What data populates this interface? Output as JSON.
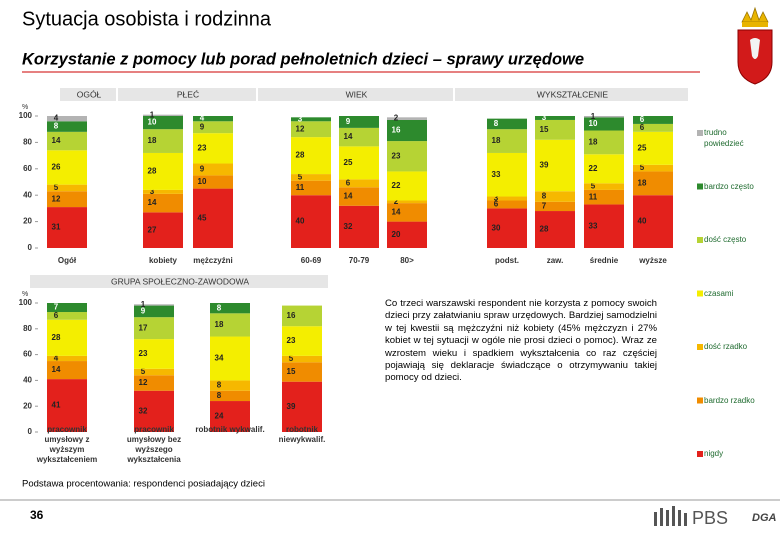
{
  "header": {
    "title": "Sytuacja osobista i rodzinna",
    "subtitle": "Korzystanie z pomocy lub porad pełnoletnich dzieci – sprawy urzędowe"
  },
  "note": "Co trzeci warszawski respondent nie korzysta z pomocy swoich dzieci przy załatwianiu spraw urzędowych. Bardziej samodzielni w tej kwestii są mężczyźni niż kobiety (45% mężczyzn i 27% kobiet w tej sytuacji w ogóle nie prosi dzieci o pomoc). Wraz ze wzrostem wieku i spadkiem wykształcenia co raz częściej pojawiają się deklaracje świadczące o otrzymywaniu takiej pomocy od dzieci.",
  "footer": {
    "basis": "Podstawa procentowania: respondenci posiadający dzieci",
    "page_number": "36",
    "logo": "PBS",
    "logo_partner": "DGA"
  },
  "chart_data": [
    {
      "type": "stacked-bar",
      "y_label": "%",
      "ylim": [
        0,
        100
      ],
      "yticks": [
        0,
        20,
        40,
        60,
        80,
        100
      ],
      "legend": "right",
      "groups": [
        "OGÓŁ",
        "PŁEĆ",
        "WIEK",
        "WYKSZTAŁCENIE"
      ],
      "categories": [
        "Ogół",
        "kobiety",
        "mężczyźni",
        "60-69",
        "70-79",
        "80>",
        "podst.",
        "zaw.",
        "średnie",
        "wyższe"
      ],
      "series": [
        {
          "name": "nigdy",
          "color": "#e3211c",
          "values": [
            31,
            27,
            45,
            40,
            32,
            20,
            30,
            28,
            33,
            40
          ]
        },
        {
          "name": "bardzo rzadko",
          "color": "#f08c00",
          "values": [
            12,
            14,
            10,
            11,
            14,
            14,
            6,
            7,
            11,
            18
          ]
        },
        {
          "name": "dość rzadko",
          "color": "#f6b800",
          "values": [
            5,
            3,
            9,
            5,
            6,
            2,
            3,
            8,
            5,
            5
          ]
        },
        {
          "name": "czasami",
          "color": "#f4ee00",
          "values": [
            26,
            28,
            23,
            28,
            25,
            22,
            33,
            39,
            22,
            25
          ]
        },
        {
          "name": "dość często",
          "color": "#b6d334",
          "values": [
            14,
            18,
            9,
            12,
            14,
            23,
            18,
            15,
            18,
            6
          ]
        },
        {
          "name": "bardzo często",
          "color": "#2d8a2d",
          "values": [
            8,
            10,
            4,
            3,
            9,
            16,
            8,
            3,
            10,
            6
          ]
        },
        {
          "name": "trudno powiedzieć",
          "color": "#b3b3b3",
          "values": [
            4,
            1,
            null,
            null,
            null,
            2,
            null,
            null,
            1,
            null
          ]
        }
      ]
    },
    {
      "type": "stacked-bar",
      "y_label": "%",
      "ylim": [
        0,
        100
      ],
      "yticks": [
        0,
        20,
        40,
        60,
        80,
        100
      ],
      "groups": [
        "GRUPA SPOŁECZNO-ZAWODOWA"
      ],
      "categories": [
        "pracownik umysłowy z wyższym wykształceniem",
        "pracownik umysłowy bez wyższego wykształcenia",
        "robotnik wykwalif.",
        "robotnik niewykwalif."
      ],
      "series": [
        {
          "color": "#e3211c",
          "values": [
            41,
            32,
            24,
            39
          ]
        },
        {
          "color": "#f08c00",
          "values": [
            14,
            12,
            8,
            15
          ]
        },
        {
          "color": "#f6b800",
          "values": [
            4,
            5,
            8,
            5
          ]
        },
        {
          "color": "#f4ee00",
          "values": [
            28,
            23,
            34,
            23
          ]
        },
        {
          "color": "#b6d334",
          "values": [
            6,
            17,
            18,
            16
          ]
        },
        {
          "color": "#2d8a2d",
          "values": [
            7,
            9,
            8,
            null
          ]
        },
        {
          "color": "#b3b3b3",
          "values": [
            null,
            1,
            null,
            null
          ]
        }
      ]
    }
  ]
}
